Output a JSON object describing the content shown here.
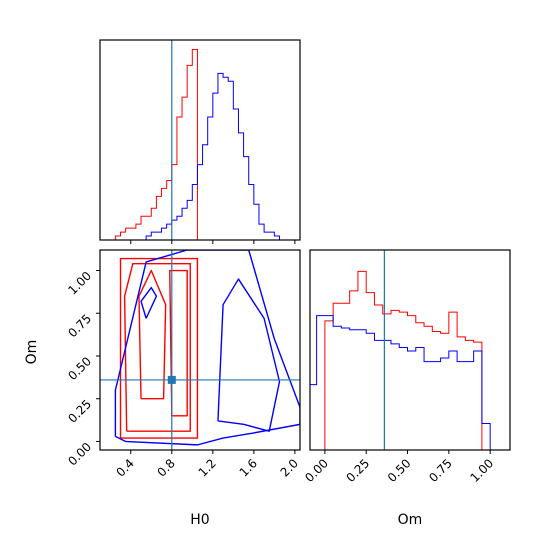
{
  "colors": {
    "red": "#ff0000",
    "blue": "#0000ff",
    "truth": "#1f77b4",
    "frame": "#000000"
  },
  "chart_data": [
    {
      "type": "histogram",
      "panel": "H0 marginal",
      "xlim": [
        0.1,
        2.05
      ],
      "bin_edges": [
        0.25,
        0.3,
        0.35,
        0.4,
        0.45,
        0.5,
        0.55,
        0.6,
        0.65,
        0.7,
        0.75,
        0.8,
        0.85,
        0.9,
        0.95,
        1.0,
        1.05,
        1.1,
        1.15,
        1.2,
        1.25,
        1.3,
        1.35,
        1.4,
        1.45,
        1.5,
        1.55,
        1.6,
        1.65,
        1.7,
        1.75,
        1.8,
        1.85,
        1.9,
        1.95,
        2.0,
        2.05
      ],
      "series": [
        {
          "color": "red",
          "values": [
            1,
            2,
            3,
            3,
            4,
            6,
            6,
            8,
            11,
            13,
            15,
            19,
            31,
            36,
            44,
            48,
            0,
            0,
            0,
            0,
            0,
            0,
            0,
            0,
            0,
            0,
            0,
            0,
            0,
            0,
            0,
            0,
            0,
            0,
            0,
            0
          ]
        },
        {
          "color": "blue",
          "values": [
            0,
            0,
            0,
            0,
            0,
            0,
            1,
            2,
            2,
            3,
            4,
            5,
            6,
            8,
            10,
            14,
            19,
            24,
            31,
            37,
            42,
            41,
            40,
            33,
            27,
            21,
            14,
            9,
            4,
            2,
            2,
            1,
            0,
            0,
            0,
            0
          ]
        }
      ],
      "xticks": [
        0.4,
        0.8,
        1.2,
        1.6,
        2.0
      ],
      "truth_line": 0.8
    },
    {
      "type": "contour",
      "panel": "H0 vs Om",
      "xlabel": "H0",
      "ylabel": "Om",
      "xlim": [
        0.1,
        2.05
      ],
      "ylim": [
        -0.05,
        1.12
      ],
      "xtick_labels": [
        "0.4",
        "0.8",
        "1.2",
        "1.6",
        "2.0"
      ],
      "ytick_labels": [
        "0.00",
        "0.25",
        "0.50",
        "0.75",
        "1.00"
      ],
      "xticks": [
        0.4,
        0.8,
        1.2,
        1.6,
        2.0
      ],
      "yticks": [
        0.0,
        0.25,
        0.5,
        0.75,
        1.0
      ],
      "truth": [
        0.8,
        0.36
      ],
      "series": [
        {
          "color": "red",
          "contours": [
            [
              [
                0.3,
                0.02
              ],
              [
                0.3,
                1.07
              ],
              [
                1.05,
                1.07
              ],
              [
                1.05,
                0.02
              ],
              [
                0.3,
                0.02
              ]
            ],
            [
              [
                0.36,
                0.06
              ],
              [
                0.34,
                0.85
              ],
              [
                0.42,
                1.04
              ],
              [
                0.98,
                1.04
              ],
              [
                0.98,
                0.06
              ],
              [
                0.36,
                0.06
              ]
            ],
            [
              [
                0.5,
                0.25
              ],
              [
                0.48,
                0.85
              ],
              [
                0.6,
                1.0
              ],
              [
                0.74,
                0.8
              ],
              [
                0.72,
                0.25
              ],
              [
                0.5,
                0.25
              ]
            ],
            [
              [
                0.8,
                0.15
              ],
              [
                0.78,
                1.0
              ],
              [
                0.95,
                1.0
              ],
              [
                0.95,
                0.15
              ],
              [
                0.8,
                0.15
              ]
            ]
          ]
        },
        {
          "color": "blue",
          "contours": [
            [
              [
                0.25,
                0.03
              ],
              [
                0.35,
                0.0
              ],
              [
                1.05,
                -0.02
              ],
              [
                1.3,
                0.02
              ],
              [
                1.6,
                0.05
              ],
              [
                2.05,
                0.1
              ],
              [
                2.05,
                0.2
              ],
              [
                1.8,
                0.6
              ],
              [
                1.55,
                1.12
              ],
              [
                0.95,
                1.12
              ],
              [
                0.55,
                1.05
              ],
              [
                0.25,
                0.3
              ],
              [
                0.25,
                0.03
              ]
            ],
            [
              [
                1.25,
                0.12
              ],
              [
                1.5,
                0.1
              ],
              [
                1.75,
                0.06
              ],
              [
                1.85,
                0.35
              ],
              [
                1.7,
                0.72
              ],
              [
                1.45,
                0.95
              ],
              [
                1.3,
                0.8
              ],
              [
                1.25,
                0.12
              ]
            ],
            [
              [
                0.55,
                0.72
              ],
              [
                0.65,
                0.85
              ],
              [
                0.6,
                0.9
              ],
              [
                0.5,
                0.82
              ],
              [
                0.55,
                0.72
              ]
            ]
          ]
        }
      ]
    },
    {
      "type": "histogram",
      "panel": "Om marginal",
      "xlabel": "Om",
      "xlim": [
        -0.09,
        1.12
      ],
      "xtick_labels": [
        "0.00",
        "0.25",
        "0.50",
        "0.75",
        "1.00"
      ],
      "xticks": [
        0.0,
        0.25,
        0.5,
        0.75,
        1.0
      ],
      "bin_edges": [
        -0.1,
        -0.05,
        0.0,
        0.05,
        0.1,
        0.15,
        0.2,
        0.25,
        0.3,
        0.35,
        0.4,
        0.45,
        0.5,
        0.55,
        0.6,
        0.65,
        0.7,
        0.75,
        0.8,
        0.85,
        0.9,
        0.95,
        1.0,
        1.05,
        1.1
      ],
      "series": [
        {
          "color": "red",
          "values": [
            0,
            0,
            73,
            83,
            83,
            90,
            101,
            89,
            82,
            77,
            79,
            78,
            76,
            72,
            70,
            67,
            66,
            78,
            64,
            62,
            61,
            0,
            0,
            0
          ]
        },
        {
          "color": "blue",
          "values": [
            37,
            76,
            76,
            70,
            69,
            68,
            68,
            66,
            62,
            62,
            60,
            58,
            56,
            58,
            50,
            50,
            52,
            56,
            50,
            50,
            56,
            15,
            0,
            0
          ]
        }
      ],
      "truth_line": 0.36
    }
  ]
}
